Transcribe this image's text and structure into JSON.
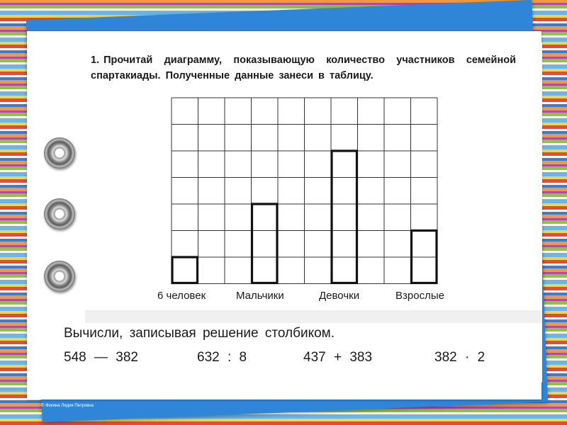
{
  "task": {
    "number": "1.",
    "text": "Прочитай диаграмму, показывающую количество участников семейной спартакиады. Полученные данные занеси в таблицу."
  },
  "chart_data": {
    "type": "bar",
    "grid": true,
    "grid_cols": 10,
    "grid_rows": 7,
    "unit_label": "6 человек",
    "categories": [
      "Мальчики",
      "Девочки",
      "Взрослые"
    ],
    "values": [
      3,
      5,
      2
    ],
    "unit_value": 1,
    "ylim": [
      0,
      7
    ]
  },
  "calc": {
    "title": "Вычисли, записывая решение столбиком.",
    "expressions": [
      "548 — 382",
      "632 : 8",
      "437 + 383",
      "382 · 2"
    ]
  },
  "footer": "© Фокина Лидия Петровна",
  "colors": {
    "card_blue": "#2f86d9",
    "ink": "#1a1a1a"
  }
}
